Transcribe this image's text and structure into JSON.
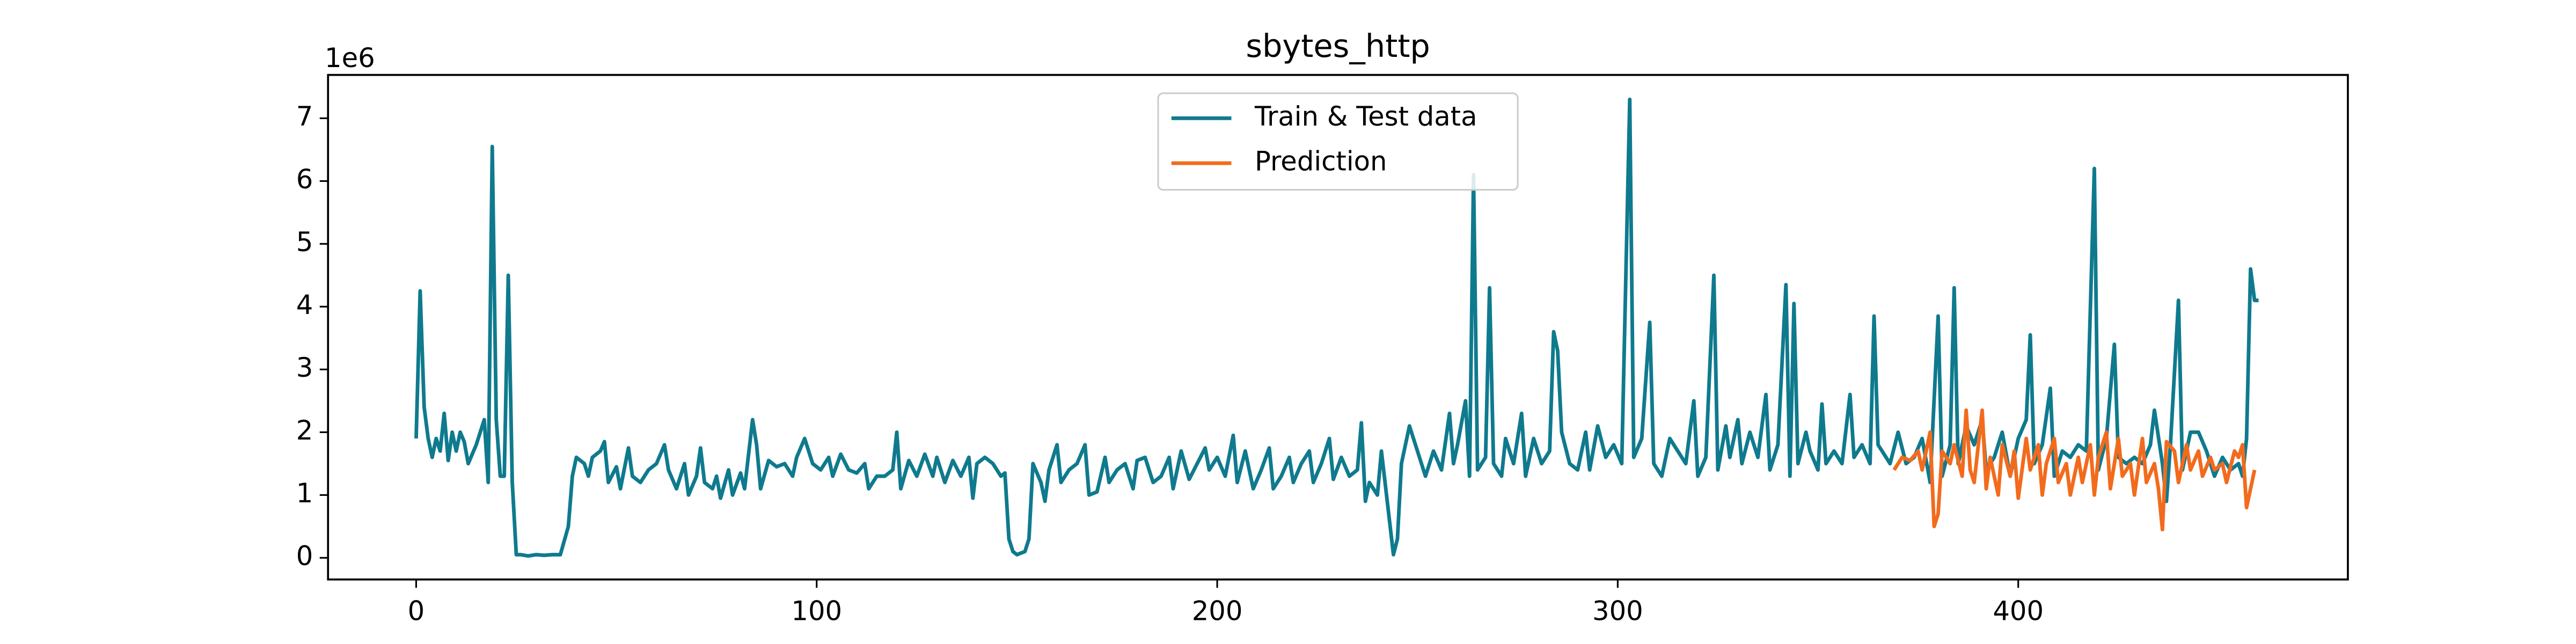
{
  "chart_data": {
    "type": "line",
    "title": "sbytes_http",
    "y_offset_label": "1e6",
    "xlim": [
      -22,
      482.3
    ],
    "xticks": [
      0,
      100,
      200,
      300,
      400
    ],
    "ylim": [
      -0.345,
      7.69
    ],
    "yticks": [
      0,
      1,
      2,
      3,
      4,
      5,
      6,
      7
    ],
    "legend": "upper center",
    "series": [
      {
        "name": "Train & Test data",
        "color": "#0f7a8e",
        "x": [
          0,
          1,
          2,
          3,
          4,
          5,
          6,
          7,
          8,
          9,
          10,
          11,
          12,
          13,
          15,
          17,
          18,
          19,
          20,
          21,
          22,
          23,
          24,
          25,
          26,
          28,
          30,
          32,
          34,
          36,
          38,
          39,
          40,
          42,
          43,
          44,
          46,
          47,
          48,
          50,
          51,
          53,
          54,
          56,
          58,
          60,
          62,
          63,
          65,
          67,
          68,
          70,
          71,
          72,
          74,
          75,
          76,
          78,
          79,
          81,
          82,
          84,
          85,
          86,
          88,
          90,
          92,
          94,
          95,
          97,
          99,
          101,
          103,
          104,
          106,
          108,
          110,
          112,
          113,
          115,
          117,
          119,
          120,
          121,
          123,
          125,
          127,
          129,
          130,
          132,
          134,
          136,
          138,
          139,
          140,
          142,
          144,
          146,
          147,
          148,
          149,
          150,
          152,
          153,
          154,
          156,
          157,
          158,
          160,
          161,
          163,
          165,
          167,
          168,
          170,
          172,
          173,
          175,
          177,
          179,
          180,
          182,
          184,
          186,
          188,
          189,
          191,
          193,
          195,
          197,
          198,
          200,
          202,
          204,
          205,
          207,
          209,
          211,
          213,
          214,
          216,
          218,
          219,
          221,
          223,
          224,
          226,
          228,
          229,
          231,
          233,
          235,
          236,
          237,
          238,
          240,
          241,
          243,
          244,
          245,
          246,
          248,
          252,
          254,
          256,
          258,
          259,
          260,
          262,
          263,
          264,
          265,
          267,
          268,
          269,
          271,
          272,
          274,
          276,
          277,
          279,
          281,
          283,
          284,
          285,
          286,
          288,
          290,
          292,
          293,
          295,
          297,
          299,
          301,
          303,
          304,
          306,
          308,
          309,
          311,
          313,
          315,
          317,
          319,
          320,
          322,
          324,
          325,
          327,
          328,
          330,
          331,
          333,
          335,
          337,
          338,
          340,
          342,
          343,
          344,
          345,
          347,
          348,
          350,
          351,
          352,
          354,
          356,
          358,
          359,
          361,
          363,
          364,
          365,
          367,
          368,
          370,
          372,
          374,
          376,
          378,
          380,
          381,
          383,
          384,
          385,
          387,
          389,
          391,
          392,
          394,
          396,
          398,
          400,
          402,
          403,
          404,
          406,
          408,
          409,
          411,
          413,
          415,
          417,
          419,
          420,
          422,
          424,
          425,
          427,
          429,
          431,
          433,
          434,
          436,
          437,
          438,
          440,
          441,
          443,
          445,
          447,
          449,
          451,
          453,
          455,
          456,
          457,
          458,
          459,
          460
        ],
        "values": [
          1.9,
          4.25,
          2.4,
          1.9,
          1.6,
          1.9,
          1.7,
          2.3,
          1.55,
          2.0,
          1.7,
          2.0,
          1.85,
          1.5,
          1.8,
          2.2,
          1.2,
          6.55,
          2.2,
          1.3,
          1.3,
          4.5,
          1.2,
          0.05,
          0.05,
          0.03,
          0.05,
          0.04,
          0.05,
          0.05,
          0.5,
          1.3,
          1.6,
          1.5,
          1.3,
          1.6,
          1.7,
          1.85,
          1.2,
          1.45,
          1.1,
          1.75,
          1.3,
          1.2,
          1.4,
          1.5,
          1.8,
          1.4,
          1.1,
          1.5,
          1.0,
          1.3,
          1.75,
          1.2,
          1.1,
          1.3,
          0.95,
          1.4,
          1.0,
          1.35,
          1.1,
          2.2,
          1.8,
          1.1,
          1.55,
          1.45,
          1.5,
          1.3,
          1.6,
          1.9,
          1.5,
          1.4,
          1.6,
          1.3,
          1.65,
          1.4,
          1.35,
          1.5,
          1.1,
          1.3,
          1.3,
          1.4,
          2.0,
          1.1,
          1.55,
          1.3,
          1.65,
          1.3,
          1.6,
          1.2,
          1.55,
          1.3,
          1.6,
          0.95,
          1.5,
          1.6,
          1.5,
          1.3,
          1.35,
          0.3,
          0.1,
          0.05,
          0.1,
          0.3,
          1.5,
          1.2,
          0.9,
          1.4,
          1.8,
          1.2,
          1.4,
          1.5,
          1.8,
          1.0,
          1.05,
          1.6,
          1.2,
          1.4,
          1.5,
          1.1,
          1.55,
          1.6,
          1.2,
          1.3,
          1.6,
          1.1,
          1.7,
          1.25,
          1.5,
          1.75,
          1.4,
          1.6,
          1.3,
          1.95,
          1.2,
          1.7,
          1.1,
          1.4,
          1.75,
          1.1,
          1.3,
          1.6,
          1.2,
          1.5,
          1.7,
          1.2,
          1.5,
          1.9,
          1.25,
          1.6,
          1.3,
          1.4,
          2.15,
          0.9,
          1.2,
          1.0,
          1.7,
          0.6,
          0.05,
          0.3,
          1.5,
          2.1,
          1.3,
          1.7,
          1.4,
          2.3,
          1.5,
          1.8,
          2.5,
          1.3,
          6.1,
          1.4,
          1.6,
          4.3,
          1.5,
          1.3,
          1.9,
          1.5,
          2.3,
          1.3,
          1.9,
          1.5,
          1.7,
          3.6,
          3.3,
          2.0,
          1.5,
          1.4,
          2.0,
          1.4,
          2.1,
          1.6,
          1.8,
          1.5,
          7.3,
          1.6,
          1.9,
          3.75,
          1.5,
          1.3,
          1.9,
          1.7,
          1.5,
          2.5,
          1.3,
          1.6,
          4.5,
          1.4,
          2.1,
          1.6,
          2.2,
          1.5,
          2.0,
          1.6,
          2.6,
          1.4,
          1.8,
          4.35,
          1.3,
          4.05,
          1.5,
          2.0,
          1.7,
          1.4,
          2.45,
          1.5,
          1.7,
          1.5,
          2.6,
          1.6,
          1.8,
          1.5,
          3.85,
          1.8,
          1.6,
          1.5,
          2.0,
          1.5,
          1.6,
          1.9,
          1.2,
          3.85,
          1.3,
          1.8,
          4.3,
          1.5,
          2.1,
          1.8,
          2.2,
          1.4,
          1.6,
          2.0,
          1.3,
          1.9,
          2.2,
          3.55,
          1.5,
          1.8,
          2.7,
          1.3,
          1.7,
          1.6,
          1.8,
          1.7,
          6.2,
          1.4,
          1.9,
          3.4,
          1.6,
          1.5,
          1.6,
          1.5,
          1.8,
          2.35,
          1.5,
          0.9,
          1.8,
          4.1,
          1.4,
          2.0,
          2.0,
          1.7,
          1.3,
          1.6,
          1.4,
          1.5,
          1.3,
          1.9,
          4.6,
          4.1,
          4.1
        ]
      },
      {
        "name": "Prediction",
        "color": "#f26b1d",
        "x": [
          369,
          371,
          373,
          375,
          376,
          378,
          379,
          380,
          381,
          383,
          384,
          386,
          387,
          388,
          389,
          391,
          392,
          393,
          395,
          396,
          398,
          399,
          400,
          402,
          403,
          405,
          406,
          407,
          409,
          410,
          412,
          413,
          415,
          416,
          418,
          419,
          420,
          422,
          423,
          425,
          426,
          428,
          429,
          431,
          432,
          434,
          435,
          436,
          437,
          439,
          440,
          442,
          443,
          445,
          446,
          448,
          449,
          451,
          452,
          454,
          455,
          456,
          457,
          458,
          459
        ],
        "values": [
          1.4,
          1.6,
          1.55,
          1.7,
          1.4,
          2.0,
          0.5,
          0.7,
          1.7,
          1.5,
          1.8,
          1.3,
          2.35,
          1.4,
          1.2,
          2.35,
          1.1,
          1.6,
          1.0,
          1.8,
          1.3,
          1.7,
          0.95,
          1.9,
          1.4,
          1.8,
          1.0,
          1.5,
          1.9,
          1.2,
          1.5,
          1.0,
          1.6,
          1.2,
          1.8,
          1.0,
          1.6,
          2.0,
          1.1,
          1.9,
          1.3,
          1.5,
          1.0,
          1.9,
          1.2,
          1.5,
          1.1,
          0.45,
          1.85,
          1.7,
          1.2,
          1.8,
          1.4,
          1.7,
          1.3,
          1.6,
          1.4,
          1.5,
          1.2,
          1.7,
          1.6,
          1.8,
          0.8,
          1.1,
          1.4
        ]
      }
    ]
  }
}
